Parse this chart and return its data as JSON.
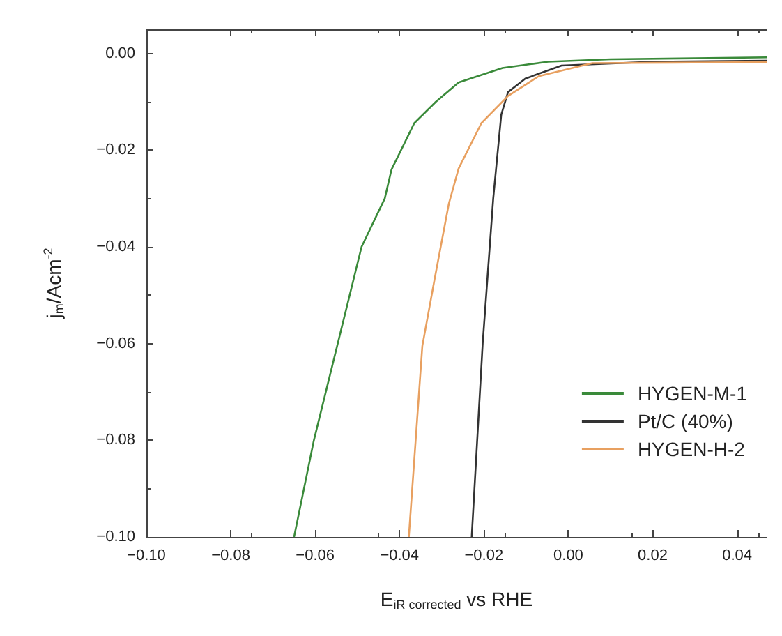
{
  "chart_data": {
    "type": "line",
    "xlabel": "E$_{iR corrected}$ vs RHE",
    "ylabel": "j$_{m}$/Acm$^{-2}$",
    "xlim": [
      -0.1,
      0.047
    ],
    "ylim": [
      -0.1,
      0.005
    ],
    "xticks": [
      {
        "value": -0.1,
        "label": "−0.10"
      },
      {
        "value": -0.08,
        "label": "−0.08"
      },
      {
        "value": -0.06,
        "label": "−0.06"
      },
      {
        "value": -0.04,
        "label": "−0.04"
      },
      {
        "value": -0.02,
        "label": "−0.02"
      },
      {
        "value": 0.0,
        "label": "0.00"
      },
      {
        "value": 0.02,
        "label": "0.02"
      },
      {
        "value": 0.04,
        "label": "0.04"
      }
    ],
    "yticks": [
      {
        "value": -0.1,
        "label": "−0.10"
      },
      {
        "value": -0.08,
        "label": "−0.08"
      },
      {
        "value": -0.06,
        "label": "−0.06"
      },
      {
        "value": -0.04,
        "label": "−0.04"
      },
      {
        "value": -0.02,
        "label": "−0.02"
      },
      {
        "value": 0.0,
        "label": "0.00"
      }
    ],
    "legend": "right",
    "grid": false,
    "marker": "none",
    "line_style": "solid",
    "series": [
      {
        "name": "HYGEN-M-1",
        "color": "#3a8a3a",
        "x": [
          -0.065,
          -0.0603,
          -0.049,
          -0.0435,
          -0.0419,
          -0.0365,
          -0.0314,
          -0.026,
          -0.0156,
          -0.0048,
          0.01,
          0.03,
          0.047
        ],
        "values": [
          -0.1,
          -0.08,
          -0.04,
          -0.03,
          -0.024,
          -0.0144,
          -0.01,
          -0.006,
          -0.003,
          -0.0017,
          -0.0012,
          -0.001,
          -0.0008
        ]
      },
      {
        "name": "Pt/C (40%)",
        "color": "#333333",
        "x": [
          -0.0229,
          -0.0203,
          -0.0178,
          -0.0159,
          -0.0143,
          -0.0102,
          -0.0016,
          0.02,
          0.047
        ],
        "values": [
          -0.1,
          -0.06,
          -0.03,
          -0.0127,
          -0.008,
          -0.0052,
          -0.0025,
          -0.0017,
          -0.0015
        ]
      },
      {
        "name": "HYGEN-H-2",
        "color": "#e8a060",
        "x": [
          -0.0378,
          -0.0346,
          -0.0317,
          -0.0283,
          -0.026,
          -0.0206,
          -0.0143,
          -0.007,
          0.0057,
          0.025,
          0.047
        ],
        "values": [
          -0.1,
          -0.0605,
          -0.0467,
          -0.031,
          -0.0238,
          -0.0144,
          -0.0088,
          -0.0047,
          -0.002,
          -0.0019,
          -0.0018
        ]
      }
    ]
  }
}
